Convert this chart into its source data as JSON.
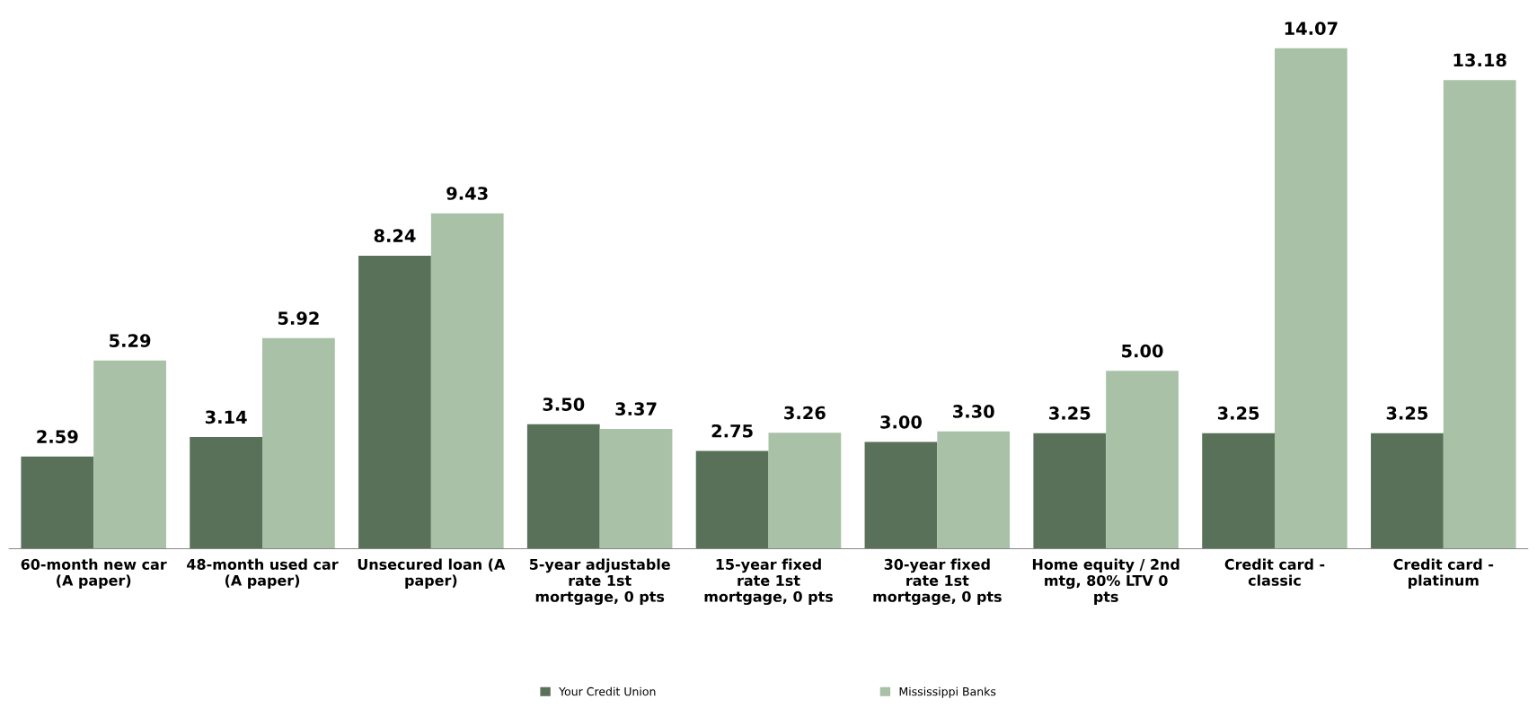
{
  "chart_data": {
    "type": "bar",
    "categories": [
      "60-month new car (A paper)",
      "48-month used car (A paper)",
      "Unsecured loan (A paper)",
      "5-year adjustable rate 1st mortgage, 0 pts",
      "15-year fixed rate 1st mortgage, 0 pts",
      "30-year fixed rate 1st mortgage, 0 pts",
      "Home equity / 2nd mtg, 80% LTV 0 pts",
      "Credit card - classic",
      "Credit card - platinum"
    ],
    "series": [
      {
        "name": "Your Credit Union",
        "color": "#5a7159",
        "values": [
          2.59,
          3.14,
          8.24,
          3.5,
          2.75,
          3.0,
          3.25,
          3.25,
          3.25
        ],
        "value_labels": [
          "2.59",
          "3.14",
          "8.24",
          "3.50",
          "2.75",
          "3.00",
          "3.25",
          "3.25",
          "3.25"
        ]
      },
      {
        "name": "Mississippi Banks",
        "color": "#a8c1a7",
        "values": [
          5.29,
          5.92,
          9.43,
          3.37,
          3.26,
          3.3,
          5.0,
          14.07,
          13.18
        ],
        "value_labels": [
          "5.29",
          "5.92",
          "9.43",
          "3.37",
          "3.26",
          "3.30",
          "5.00",
          "14.07",
          "13.18"
        ]
      }
    ],
    "grid": false,
    "legend": "bottom"
  }
}
